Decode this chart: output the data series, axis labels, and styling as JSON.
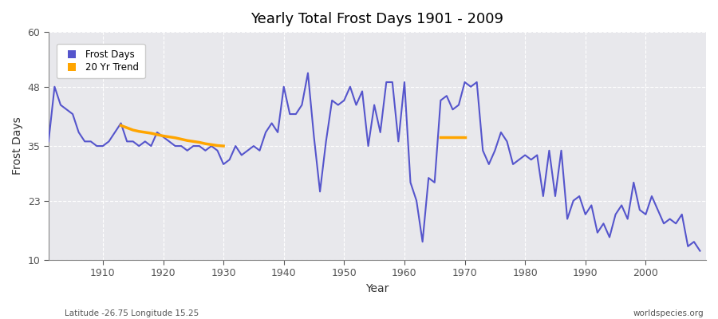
{
  "title": "Yearly Total Frost Days 1901 - 2009",
  "xlabel": "Year",
  "ylabel": "Frost Days",
  "footnote_left": "Latitude -26.75 Longitude 15.25",
  "footnote_right": "worldspecies.org",
  "ylim": [
    10,
    60
  ],
  "yticks": [
    10,
    23,
    35,
    48,
    60
  ],
  "bg_color": "#f0f0f0",
  "plot_bg_color": "#e8e8ec",
  "line_color": "#5555cc",
  "trend_color": "#ffa500",
  "years": [
    1901,
    1902,
    1903,
    1904,
    1905,
    1906,
    1907,
    1908,
    1909,
    1910,
    1911,
    1912,
    1913,
    1914,
    1915,
    1916,
    1917,
    1918,
    1919,
    1920,
    1921,
    1922,
    1923,
    1924,
    1925,
    1926,
    1927,
    1928,
    1929,
    1930,
    1931,
    1932,
    1933,
    1934,
    1935,
    1936,
    1937,
    1938,
    1939,
    1940,
    1941,
    1942,
    1943,
    1944,
    1945,
    1946,
    1947,
    1948,
    1949,
    1950,
    1951,
    1952,
    1953,
    1954,
    1955,
    1956,
    1957,
    1958,
    1959,
    1960,
    1961,
    1962,
    1963,
    1964,
    1965,
    1966,
    1967,
    1968,
    1969,
    1970,
    1971,
    1972,
    1973,
    1974,
    1975,
    1976,
    1977,
    1978,
    1979,
    1980,
    1981,
    1982,
    1983,
    1984,
    1985,
    1986,
    1987,
    1988,
    1989,
    1990,
    1991,
    1992,
    1993,
    1994,
    1995,
    1996,
    1997,
    1998,
    1999,
    2000,
    2001,
    2002,
    2003,
    2004,
    2005,
    2006,
    2007,
    2008,
    2009
  ],
  "values": [
    36,
    48,
    44,
    43,
    42,
    38,
    36,
    36,
    35,
    35,
    36,
    38,
    40,
    36,
    36,
    35,
    36,
    35,
    38,
    37,
    36,
    35,
    35,
    34,
    35,
    35,
    34,
    35,
    34,
    31,
    32,
    35,
    33,
    34,
    35,
    34,
    38,
    40,
    38,
    48,
    42,
    42,
    44,
    51,
    37,
    25,
    36,
    45,
    44,
    45,
    48,
    44,
    47,
    35,
    44,
    38,
    49,
    49,
    36,
    49,
    27,
    23,
    14,
    28,
    27,
    45,
    46,
    43,
    44,
    49,
    48,
    49,
    34,
    31,
    34,
    38,
    36,
    31,
    32,
    33,
    32,
    33,
    24,
    34,
    24,
    34,
    19,
    23,
    24,
    20,
    22,
    16,
    18,
    15,
    20,
    22,
    19,
    27,
    21,
    20,
    24,
    21,
    18,
    19,
    18,
    20,
    13,
    14,
    12
  ],
  "trend_seg1_years": [
    1913,
    1914,
    1915,
    1916,
    1917,
    1918,
    1919,
    1920,
    1921,
    1922,
    1923,
    1924,
    1925,
    1926,
    1927,
    1928,
    1929,
    1930
  ],
  "trend_seg1_values": [
    39.5,
    39.0,
    38.5,
    38.2,
    38.0,
    37.8,
    37.5,
    37.2,
    37.0,
    36.8,
    36.5,
    36.2,
    36.0,
    35.8,
    35.5,
    35.3,
    35.1,
    35.0
  ],
  "trend_seg2_years": [
    1966,
    1967,
    1968,
    1969,
    1970
  ],
  "trend_seg2_values": [
    37.0,
    37.0,
    37.0,
    37.0,
    37.0
  ]
}
